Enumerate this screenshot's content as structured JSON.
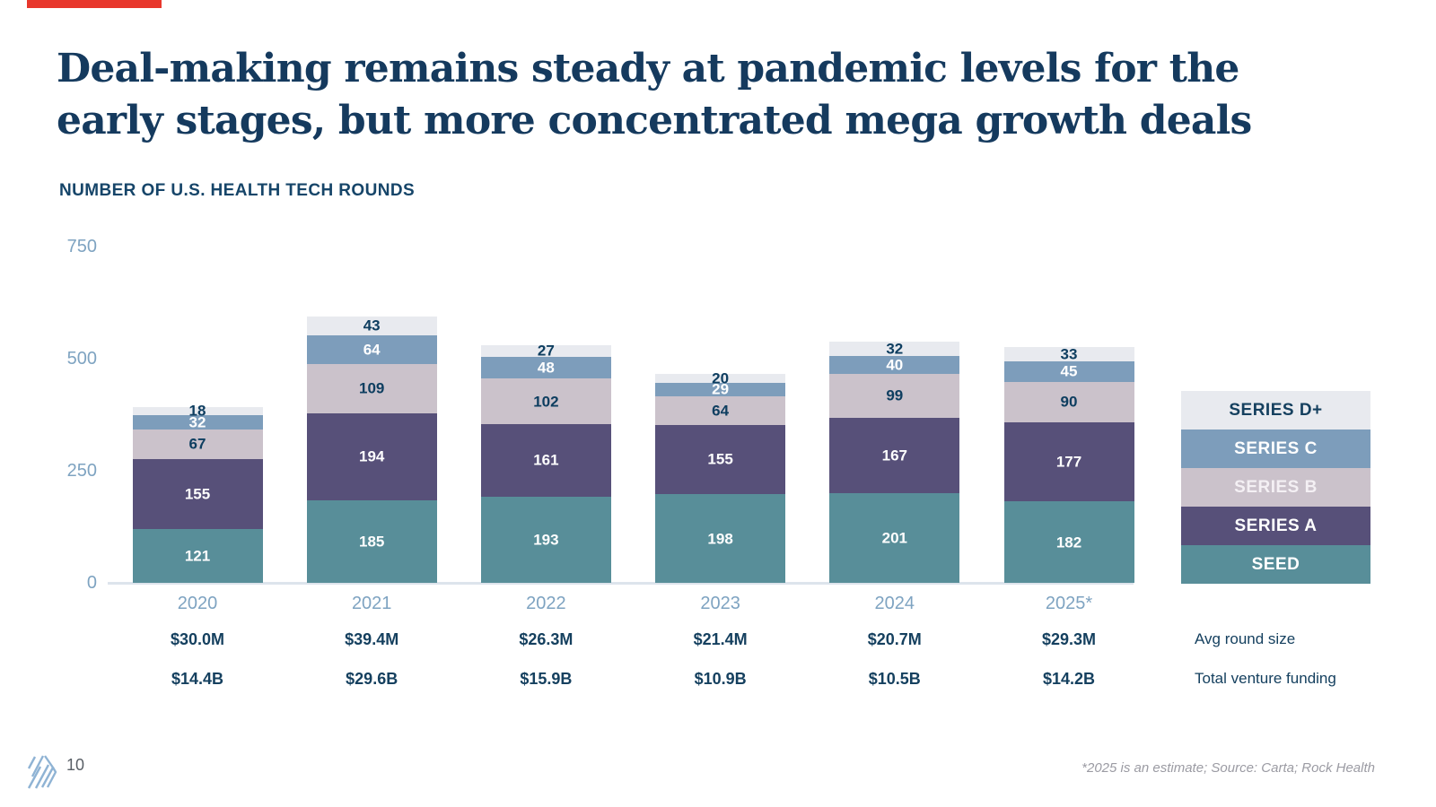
{
  "title_line1": "Deal-making remains steady at pandemic levels for the",
  "title_line2": "early stages, but more concentrated mega growth deals",
  "subtitle": "NUMBER OF U.S. HEALTH TECH ROUNDS",
  "colors": {
    "accent_red": "#e8372c",
    "title_navy": "#153a5e",
    "value_navy": "#0e3e60",
    "axis_blue": "#7ea3c1",
    "axis_line": "#dde4ec"
  },
  "chart_data": {
    "type": "bar",
    "subtype": "stacked",
    "title": "NUMBER OF U.S. HEALTH TECH ROUNDS",
    "categories": [
      "2020",
      "2021",
      "2022",
      "2023",
      "2024",
      "2025*"
    ],
    "series": [
      {
        "name": "SEED",
        "color": "#588e99",
        "label_color": "#ffffff",
        "legend_text_color": "#ffffff",
        "values": [
          121,
          185,
          193,
          198,
          201,
          182
        ]
      },
      {
        "name": "SERIES A",
        "color": "#575079",
        "label_color": "#ffffff",
        "legend_text_color": "#ffffff",
        "values": [
          155,
          194,
          161,
          155,
          167,
          177
        ]
      },
      {
        "name": "SERIES B",
        "color": "#cbc2cb",
        "label_color": "#0e3e60",
        "legend_text_color": "#f4f0f4",
        "values": [
          67,
          109,
          102,
          64,
          99,
          90
        ]
      },
      {
        "name": "SERIES C",
        "color": "#7d9dbb",
        "label_color": "#ffffff",
        "legend_text_color": "#ffffff",
        "values": [
          32,
          64,
          48,
          29,
          40,
          45
        ]
      },
      {
        "name": "SERIES D+",
        "color": "#e8eaef",
        "label_color": "#0e3e60",
        "legend_text_color": "#15405f",
        "values": [
          18,
          43,
          27,
          20,
          32,
          33
        ]
      }
    ],
    "y_ticks": [
      0,
      250,
      500,
      750
    ],
    "ylim": [
      0,
      750
    ],
    "grid": false,
    "legend_position": "right",
    "legend_order_top_to_bottom": [
      "SERIES D+",
      "SERIES C",
      "SERIES B",
      "SERIES A",
      "SEED"
    ],
    "annotation_rows": [
      {
        "label": "Avg round size",
        "values": [
          "$30.0M",
          "$39.4M",
          "$26.3M",
          "$21.4M",
          "$20.7M",
          "$29.3M"
        ]
      },
      {
        "label": "Total venture funding",
        "values": [
          "$14.4B",
          "$29.6B",
          "$15.9B",
          "$10.9B",
          "$10.5B",
          "$14.2B"
        ]
      }
    ]
  },
  "footer": {
    "page_number": "10",
    "footnote": "*2025 is an estimate; Source: Carta; Rock Health",
    "logo": "rock-health-logo"
  }
}
